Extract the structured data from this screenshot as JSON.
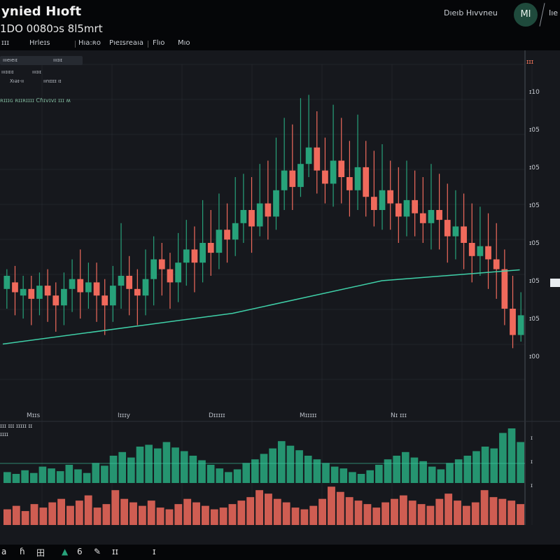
{
  "header": {
    "title": "ynied Hıoft",
    "ticker": "1DO 0080ɔs 8l5mrt",
    "user_label": "Dıeıb Hıvvneu",
    "avatar": "MI",
    "menu_right": "Iıe"
  },
  "tabs": [
    "ɪɪɪ",
    "Hrleɪs",
    "Hıa:ʀo",
    "Pıeɪsreaıa",
    "Flıo",
    "Mıo"
  ],
  "legend": {
    "row1": "ıııeıeıɪ",
    "row1b": "ıııɪıɪ",
    "row2": "ıııɪıɪıɪ",
    "row3a": "Xıǝɪ-ıı",
    "row3b": "ıınɪɪɪɪ ıɪ"
  },
  "study_label": "ʀɪɪɪɢ ʀɪɪʀɪɪɪɪ Cɦɪvɪvɪ ɪɪɪ ʍ",
  "corner_tag": "ɪɪɪ",
  "volume_label": "ɪɪɪ ɪɪɪ ɪɪɪɪɪ ɪɪ",
  "volume_sublabel": "ɪɪɪɪ",
  "bottom_tools": [
    "a",
    "ɦ",
    "田",
    "▲",
    "6",
    "✎",
    "ɪɪ",
    "ɪ"
  ],
  "chart_data": {
    "type": "candlestick",
    "colors": {
      "up": "#27a27a",
      "down": "#f06a5c",
      "trend": "#3fd0a8",
      "grid": "#3a3f47"
    },
    "y_ticks": [
      "ɪ10",
      "ɪ05",
      "ɪ05",
      "ɪ05",
      "ɪ05",
      "ɪ05",
      "ɪ05",
      "ɪ00"
    ],
    "x_ticks": [
      "Mɪɪs",
      "Iɪɪɪy",
      "Dɪɪɪɪɪ",
      "Mɪɪɪɪɪ",
      "Nɪ ɪɪɪ"
    ],
    "volume_ticks": [
      "ɪ",
      "ɪ",
      "ɪ"
    ],
    "trendline": [
      [
        0,
        35
      ],
      [
        40,
        52
      ],
      [
        66,
        70
      ],
      [
        90,
        76
      ]
    ],
    "candles": [
      [
        36,
        40,
        30,
        42
      ],
      [
        38,
        35,
        28,
        43
      ],
      [
        34,
        36,
        27,
        40
      ],
      [
        36,
        33,
        25,
        40
      ],
      [
        33,
        37,
        28,
        41
      ],
      [
        37,
        34,
        26,
        42
      ],
      [
        34,
        31,
        23,
        38
      ],
      [
        31,
        36,
        25,
        41
      ],
      [
        36,
        39,
        29,
        45
      ],
      [
        39,
        35,
        27,
        48
      ],
      [
        35,
        38,
        30,
        44
      ],
      [
        38,
        34,
        26,
        44
      ],
      [
        34,
        31,
        22,
        39
      ],
      [
        31,
        37,
        26,
        43
      ],
      [
        37,
        40,
        30,
        56
      ],
      [
        40,
        36,
        28,
        46
      ],
      [
        36,
        34,
        25,
        42
      ],
      [
        34,
        39,
        28,
        48
      ],
      [
        39,
        45,
        31,
        52
      ],
      [
        45,
        42,
        34,
        50
      ],
      [
        42,
        38,
        30,
        47
      ],
      [
        38,
        44,
        32,
        53
      ],
      [
        44,
        48,
        37,
        57
      ],
      [
        48,
        44,
        35,
        55
      ],
      [
        44,
        50,
        38,
        63
      ],
      [
        50,
        47,
        40,
        60
      ],
      [
        47,
        54,
        42,
        65
      ],
      [
        54,
        51,
        44,
        62
      ],
      [
        51,
        56,
        46,
        70
      ],
      [
        56,
        60,
        50,
        71
      ],
      [
        60,
        55,
        47,
        70
      ],
      [
        55,
        62,
        52,
        74
      ],
      [
        62,
        58,
        51,
        75
      ],
      [
        58,
        66,
        54,
        82
      ],
      [
        66,
        72,
        60,
        88
      ],
      [
        72,
        67,
        60,
        86
      ],
      [
        67,
        74,
        64,
        94
      ],
      [
        74,
        79,
        70,
        95
      ],
      [
        79,
        72,
        65,
        90
      ],
      [
        72,
        68,
        62,
        82
      ],
      [
        68,
        75,
        61,
        92
      ],
      [
        75,
        70,
        62,
        88
      ],
      [
        70,
        66,
        58,
        81
      ],
      [
        66,
        73,
        60,
        89
      ],
      [
        73,
        64,
        58,
        81
      ],
      [
        64,
        60,
        55,
        78
      ],
      [
        60,
        66,
        54,
        80
      ],
      [
        66,
        62,
        54,
        75
      ],
      [
        62,
        58,
        50,
        73
      ],
      [
        58,
        63,
        52,
        75
      ],
      [
        63,
        59,
        52,
        72
      ],
      [
        59,
        56,
        50,
        70
      ],
      [
        56,
        60,
        48,
        74
      ],
      [
        60,
        57,
        48,
        71
      ],
      [
        57,
        52,
        44,
        68
      ],
      [
        52,
        55,
        45,
        66
      ],
      [
        55,
        50,
        42,
        65
      ],
      [
        50,
        46,
        38,
        62
      ],
      [
        46,
        49,
        40,
        61
      ],
      [
        49,
        45,
        36,
        59
      ],
      [
        45,
        42,
        33,
        56
      ],
      [
        42,
        30,
        25,
        48
      ],
      [
        30,
        22,
        18,
        40
      ],
      [
        22,
        28,
        20,
        35
      ]
    ],
    "volume_upper": [
      12,
      10,
      14,
      11,
      18,
      16,
      13,
      20,
      15,
      11,
      22,
      19,
      30,
      34,
      28,
      40,
      42,
      38,
      45,
      39,
      35,
      30,
      25,
      20,
      16,
      12,
      15,
      22,
      26,
      32,
      38,
      46,
      41,
      36,
      30,
      26,
      22,
      18,
      16,
      12,
      10,
      14,
      20,
      26,
      30,
      34,
      28,
      24,
      18,
      15,
      22,
      26,
      30,
      35,
      40,
      38,
      55,
      60,
      45
    ],
    "volume_lower": [
      18,
      22,
      16,
      24,
      20,
      26,
      30,
      22,
      28,
      34,
      20,
      24,
      40,
      30,
      26,
      22,
      28,
      20,
      18,
      24,
      30,
      26,
      22,
      18,
      20,
      24,
      28,
      32,
      40,
      36,
      30,
      26,
      20,
      18,
      22,
      30,
      44,
      38,
      32,
      28,
      24,
      20,
      26,
      30,
      34,
      28,
      24,
      22,
      30,
      36,
      28,
      22,
      26,
      40,
      32,
      30,
      28,
      24
    ]
  }
}
